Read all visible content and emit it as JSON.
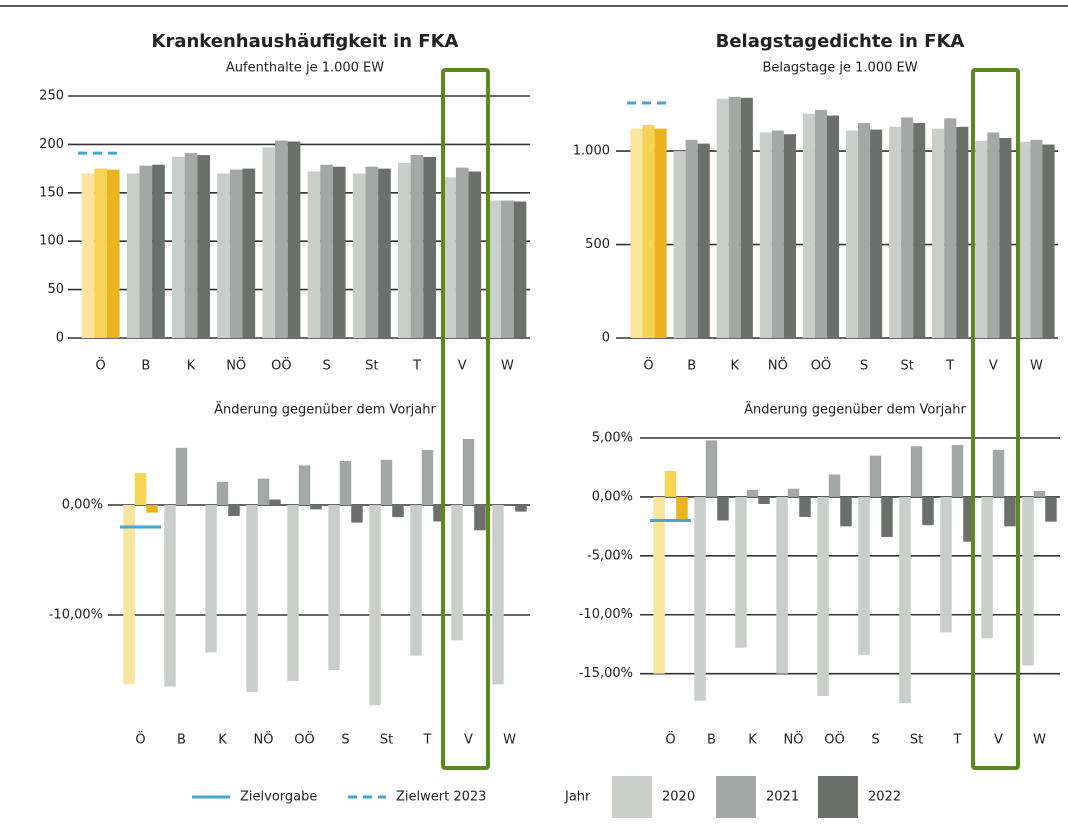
{
  "chart_data": [
    {
      "type": "bar",
      "title": "Krankenhaushäufigkeit in FKA",
      "subtitle": "Aufenthalte je 1.000 EW",
      "categories": [
        "Ö",
        "B",
        "K",
        "NÖ",
        "OÖ",
        "S",
        "St",
        "T",
        "V",
        "W"
      ],
      "series": [
        {
          "name": "2020",
          "color": "#c9cecb",
          "values": [
            170,
            170,
            187,
            170,
            197,
            172,
            170,
            181,
            166,
            142
          ]
        },
        {
          "name": "2021",
          "color": "#a3a7a5",
          "values": [
            175,
            178,
            191,
            174,
            204,
            179,
            177,
            189,
            176,
            142
          ]
        },
        {
          "name": "2022",
          "color": "#6b706d",
          "values": [
            174,
            179,
            189,
            175,
            203,
            177,
            175,
            187,
            172,
            141
          ]
        }
      ],
      "highlight": {
        "category": "Ö",
        "colors": [
          "#fbe49c",
          "#f6d255",
          "#ebb41e"
        ]
      },
      "target": {
        "name": "Zielwert 2023",
        "value": 191,
        "category": "Ö",
        "style": "dashed",
        "color": "#45a6d5"
      },
      "ylim": [
        0,
        250
      ],
      "yticks": [
        0,
        50,
        100,
        150,
        200,
        250
      ],
      "grid": true
    },
    {
      "type": "bar",
      "title": "Belagstagedichte in FKA",
      "subtitle": "Belagstage je 1.000 EW",
      "categories": [
        "Ö",
        "B",
        "K",
        "NÖ",
        "OÖ",
        "S",
        "St",
        "T",
        "V",
        "W"
      ],
      "series": [
        {
          "name": "2020",
          "color": "#c9cecb",
          "values": [
            1120,
            1000,
            1280,
            1100,
            1200,
            1110,
            1130,
            1120,
            1055,
            1050
          ]
        },
        {
          "name": "2021",
          "color": "#a3a7a5",
          "values": [
            1140,
            1060,
            1290,
            1110,
            1220,
            1150,
            1180,
            1175,
            1100,
            1060
          ]
        },
        {
          "name": "2022",
          "color": "#6b706d",
          "values": [
            1120,
            1040,
            1285,
            1090,
            1190,
            1115,
            1150,
            1130,
            1070,
            1035
          ]
        }
      ],
      "highlight": {
        "category": "Ö",
        "colors": [
          "#fbe49c",
          "#f6d255",
          "#ebb41e"
        ]
      },
      "target": {
        "name": "Zielwert 2023",
        "value": 1257,
        "category": "Ö",
        "style": "dashed",
        "color": "#45a6d5"
      },
      "ylim": [
        0,
        1300
      ],
      "yticks": [
        0,
        500,
        {
          "value": 1000,
          "label": "1.000"
        }
      ],
      "grid": true
    },
    {
      "type": "bar",
      "title": "Änderung gegenüber dem Vorjahr",
      "categories": [
        "Ö",
        "B",
        "K",
        "NÖ",
        "OÖ",
        "S",
        "St",
        "T",
        "V",
        "W"
      ],
      "series": [
        {
          "name": "2020",
          "color": "#c9cecb",
          "values": [
            -16.3,
            -16.5,
            -13.4,
            -17.0,
            -16.0,
            -15.0,
            -18.2,
            -13.7,
            -12.3,
            -16.3
          ]
        },
        {
          "name": "2021",
          "color": "#a3a7a5",
          "values": [
            2.9,
            5.2,
            2.1,
            2.4,
            3.6,
            4.0,
            4.1,
            5.0,
            6.0,
            0
          ]
        },
        {
          "name": "2022",
          "color": "#6b706d",
          "values": [
            -0.7,
            0,
            -1.0,
            0.5,
            -0.4,
            -1.6,
            -1.1,
            -1.5,
            -2.3,
            -0.6
          ]
        }
      ],
      "highlight": {
        "category": "Ö",
        "colors": [
          "#fbe49c",
          "#f6d255",
          "#ebb41e"
        ]
      },
      "target": {
        "name": "Zielvorgabe",
        "value": -2.0,
        "category": "Ö",
        "style": "solid",
        "color": "#45a6d5"
      },
      "ylim": [
        -19,
        7
      ],
      "yticks": [
        {
          "value": -10,
          "label": "-10,00%"
        },
        {
          "value": 0,
          "label": "0,00%"
        }
      ],
      "grid": true
    },
    {
      "type": "bar",
      "title": "Änderung gegenüber dem Vorjahr",
      "categories": [
        "Ö",
        "B",
        "K",
        "NÖ",
        "OÖ",
        "S",
        "St",
        "T",
        "V",
        "W"
      ],
      "series": [
        {
          "name": "2020",
          "color": "#c9cecb",
          "values": [
            -15.0,
            -17.3,
            -12.8,
            -15.0,
            -16.9,
            -13.4,
            -17.5,
            -11.5,
            -12.0,
            -14.3
          ]
        },
        {
          "name": "2021",
          "color": "#a3a7a5",
          "values": [
            2.2,
            4.8,
            0.6,
            0.7,
            1.9,
            3.5,
            4.3,
            4.4,
            4.0,
            0.5
          ]
        },
        {
          "name": "2022",
          "color": "#6b706d",
          "values": [
            -2.0,
            -2.0,
            -0.6,
            -1.7,
            -2.5,
            -3.4,
            -2.4,
            -3.8,
            -2.5,
            -2.1
          ]
        }
      ],
      "highlight": {
        "category": "Ö",
        "colors": [
          "#fbe49c",
          "#f6d255",
          "#ebb41e"
        ]
      },
      "target": {
        "name": "Zielvorgabe",
        "value": -2.0,
        "category": "Ö",
        "style": "solid",
        "color": "#45a6d5"
      },
      "ylim": [
        -18,
        5
      ],
      "yticks": [
        {
          "value": -15,
          "label": "-15,00%"
        },
        {
          "value": -10,
          "label": "-10,00%"
        },
        {
          "value": -5,
          "label": "-5,00%"
        },
        {
          "value": 0,
          "label": "0,00%"
        },
        {
          "value": 5,
          "label": "5,00%"
        }
      ],
      "grid": true
    }
  ],
  "legend": {
    "title": "Jahr"
  }
}
